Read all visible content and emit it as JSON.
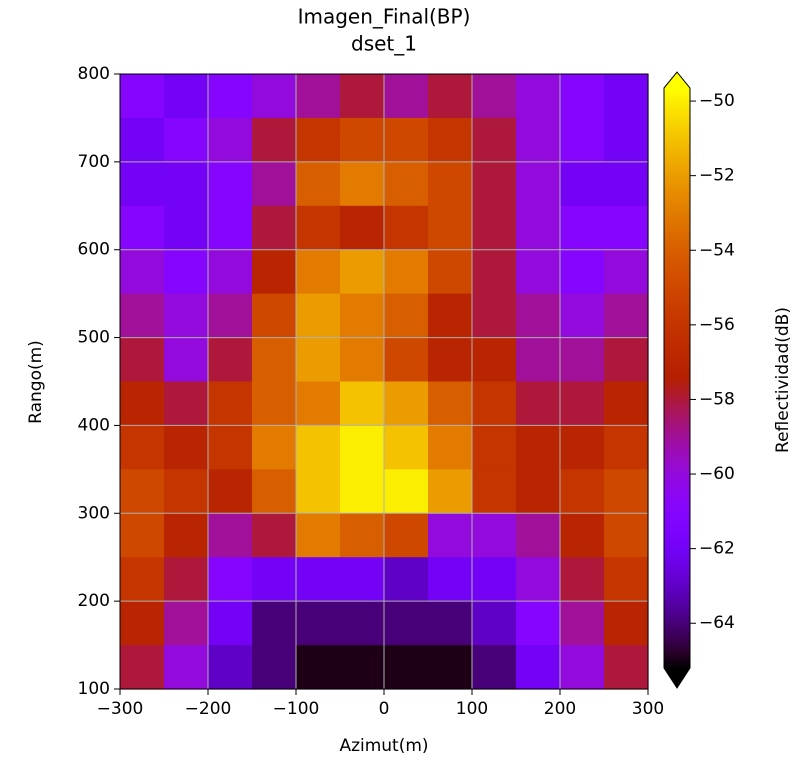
{
  "chart_data": {
    "type": "heatmap",
    "title": "Imagen_Final(BP)",
    "subtitle": "dset_1",
    "x_label": "Azimut(m)",
    "y_label": "Rango(m)",
    "x": [
      -275,
      -225,
      -175,
      -125,
      -75,
      -25,
      25,
      75,
      125,
      175,
      225,
      275
    ],
    "y": [
      775,
      725,
      675,
      625,
      575,
      525,
      475,
      425,
      375,
      325,
      275,
      225,
      175,
      125
    ],
    "values": [
      [
        -61,
        -62,
        -61,
        -60,
        -59,
        -58,
        -59,
        -58,
        -59,
        -60,
        -61,
        -62
      ],
      [
        -62,
        -61,
        -60,
        -58,
        -56,
        -55,
        -55,
        -56,
        -58,
        -60,
        -61,
        -62
      ],
      [
        -62,
        -62,
        -61,
        -59,
        -54,
        -53,
        -54,
        -55,
        -58,
        -60,
        -62,
        -62
      ],
      [
        -61,
        -62,
        -61,
        -58,
        -56,
        -57,
        -56,
        -55,
        -58,
        -60,
        -61,
        -61
      ],
      [
        -60,
        -61,
        -60,
        -57,
        -53,
        -52,
        -53,
        -55,
        -58,
        -60,
        -61,
        -60
      ],
      [
        -59,
        -60,
        -59,
        -55,
        -52,
        -53,
        -54,
        -57,
        -58,
        -59,
        -60,
        -59
      ],
      [
        -58,
        -60,
        -58,
        -54,
        -52,
        -53,
        -55,
        -57,
        -57,
        -59,
        -59,
        -58
      ],
      [
        -57,
        -58,
        -56,
        -54,
        -53,
        -51,
        -52,
        -54,
        -56,
        -58,
        -58,
        -57
      ],
      [
        -56,
        -57,
        -56,
        -53,
        -51,
        -50,
        -51,
        -53,
        -56,
        -57,
        -57,
        -56
      ],
      [
        -55,
        -56,
        -57,
        -54,
        -51,
        -50,
        -50,
        -52,
        -56,
        -57,
        -56,
        -55
      ],
      [
        -55,
        -57,
        -59,
        -58,
        -53,
        -54,
        -55,
        -60,
        -60,
        -59,
        -57,
        -55
      ],
      [
        -56,
        -58,
        -61,
        -62,
        -62,
        -62,
        -63,
        -62,
        -62,
        -60,
        -58,
        -56
      ],
      [
        -57,
        -59,
        -62,
        -64,
        -64,
        -64,
        -64,
        -64,
        -63,
        -61,
        -59,
        -57
      ],
      [
        -58,
        -60,
        -63,
        -64,
        -65,
        -65,
        -65,
        -65,
        -64,
        -62,
        -60,
        -58
      ]
    ],
    "xlim": [
      -300,
      300
    ],
    "xticks": [
      {
        "value": -300,
        "label": "−300"
      },
      {
        "value": -200,
        "label": "−200"
      },
      {
        "value": -100,
        "label": "−100"
      },
      0,
      100,
      200,
      300
    ],
    "ylim": [
      100,
      800
    ],
    "yticks": [
      100,
      200,
      300,
      400,
      500,
      600,
      700,
      800
    ],
    "grid": true,
    "colormap": "gnuplot",
    "clim": [
      -65.2,
      -49.65
    ],
    "colorbar_extend": "both",
    "colorbar_label": "Reflectividad(dB)",
    "cticks": [
      {
        "value": -64,
        "label": "−64"
      },
      {
        "value": -62,
        "label": "−62"
      },
      {
        "value": -60,
        "label": "−60"
      },
      {
        "value": -58,
        "label": "−58"
      },
      {
        "value": -56,
        "label": "−56"
      },
      {
        "value": -54,
        "label": "−54"
      },
      {
        "value": -52,
        "label": "−52"
      },
      {
        "value": -50,
        "label": "−50"
      }
    ]
  }
}
